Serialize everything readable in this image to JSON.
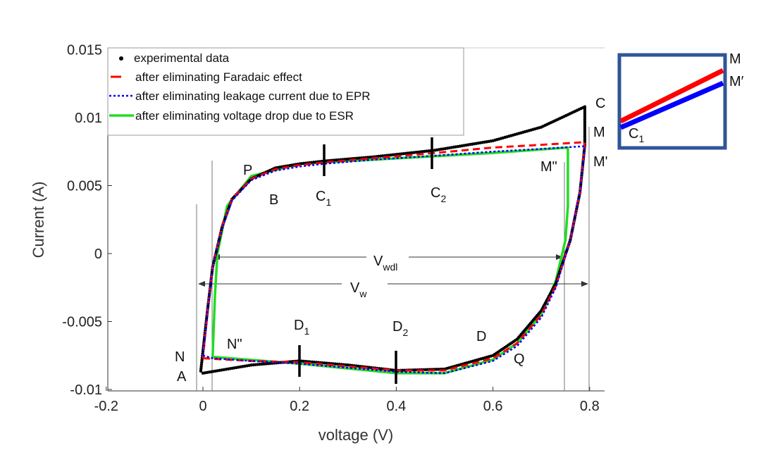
{
  "chart_data": {
    "type": "line",
    "xlabel": "voltage (V)",
    "ylabel": "Current (A)",
    "xlim": [
      -0.2,
      0.85
    ],
    "ylim": [
      -0.01,
      0.015
    ],
    "xticks": [
      "-0.2",
      "0",
      "0.2",
      "0.4",
      "0.6",
      "0.8"
    ],
    "xtick_values": [
      -0.2,
      0,
      0.2,
      0.4,
      0.6,
      0.8
    ],
    "yticks": [
      "0.015",
      "0.01",
      "0.005",
      "0",
      "-0.005",
      "-0.01"
    ],
    "ytick_values": [
      0.015,
      0.01,
      0.005,
      0,
      -0.005,
      -0.01
    ],
    "legend_position": "top-left",
    "series": [
      {
        "name": "experimental data",
        "color": "#000000",
        "style": "dots",
        "x": [
          0.0,
          0.1,
          0.2,
          0.3,
          0.4,
          0.5,
          0.6,
          0.65,
          0.7,
          0.73,
          0.76,
          0.78,
          0.79,
          0.79,
          0.7,
          0.6,
          0.48,
          0.35,
          0.25,
          0.2,
          0.15,
          0.1,
          0.06,
          0.04,
          0.02,
          0.01,
          0.0,
          -0.005
        ],
        "y": [
          -0.0088,
          -0.0082,
          -0.0079,
          -0.0082,
          -0.0086,
          -0.0085,
          -0.0075,
          -0.0063,
          -0.0042,
          -0.0022,
          0.001,
          0.0045,
          0.008,
          0.0108,
          0.0093,
          0.0083,
          0.0076,
          0.0071,
          0.0068,
          0.0066,
          0.0063,
          0.0055,
          0.004,
          0.002,
          -0.001,
          -0.004,
          -0.0072,
          -0.0088
        ]
      },
      {
        "name": "after eliminating Faradaic effect",
        "color": "#ff0000",
        "style": "dashed",
        "x": [
          0.0,
          0.1,
          0.2,
          0.3,
          0.4,
          0.5,
          0.6,
          0.65,
          0.7,
          0.73,
          0.76,
          0.78,
          0.79,
          0.7,
          0.6,
          0.48,
          0.35,
          0.25,
          0.2,
          0.15,
          0.1,
          0.06,
          0.04,
          0.02,
          0.01,
          0.0
        ],
        "y": [
          -0.0077,
          -0.0079,
          -0.008,
          -0.0083,
          -0.0086,
          -0.0086,
          -0.0077,
          -0.0066,
          -0.0045,
          -0.0024,
          0.001,
          0.0045,
          0.0082,
          0.008,
          0.0078,
          0.0074,
          0.007,
          0.0067,
          0.0065,
          0.0062,
          0.0055,
          0.004,
          0.002,
          -0.001,
          -0.004,
          -0.0077
        ]
      },
      {
        "name": "after eliminating leakage current due to EPR",
        "color": "#0000ff",
        "style": "dotted",
        "x": [
          0.0,
          0.02,
          0.1,
          0.2,
          0.3,
          0.4,
          0.5,
          0.6,
          0.65,
          0.7,
          0.73,
          0.76,
          0.78,
          0.79,
          0.7,
          0.6,
          0.48,
          0.35,
          0.25,
          0.2,
          0.15,
          0.1,
          0.06,
          0.04,
          0.02,
          0.01,
          0.0
        ],
        "y": [
          -0.0075,
          -0.0077,
          -0.0079,
          -0.0081,
          -0.0084,
          -0.0087,
          -0.0088,
          -0.0079,
          -0.0068,
          -0.0047,
          -0.0025,
          0.001,
          0.0045,
          0.0079,
          0.0077,
          0.0075,
          0.0072,
          0.0069,
          0.0066,
          0.0064,
          0.0061,
          0.0054,
          0.0039,
          0.0019,
          -0.001,
          -0.004,
          -0.0075
        ]
      },
      {
        "name": "after eliminating voltage drop due to ESR",
        "color": "#22dd22",
        "style": "solid",
        "x": [
          0.02,
          0.025,
          0.03,
          0.05,
          0.1,
          0.2,
          0.4,
          0.6,
          0.755,
          0.755,
          0.75,
          0.73,
          0.7,
          0.65,
          0.6,
          0.5,
          0.4,
          0.2,
          0.02
        ],
        "y": [
          -0.0076,
          -0.003,
          0.0,
          0.0035,
          0.0057,
          0.0066,
          0.007,
          0.0074,
          0.0078,
          0.0035,
          0.001,
          -0.002,
          -0.0045,
          -0.0066,
          -0.0078,
          -0.0088,
          -0.0088,
          -0.0081,
          -0.0076
        ]
      }
    ],
    "annotations": {
      "C": "C",
      "M": "M",
      "M_prime": "M'",
      "M_dprime": "M\"",
      "P": "P",
      "B": "B",
      "C1": "C",
      "C1_sub": "1",
      "C2": "C",
      "C2_sub": "2",
      "D1": "D",
      "D1_sub": "1",
      "D2": "D",
      "D2_sub": "2",
      "D": "D",
      "Q": "Q",
      "N": "N",
      "N_dprime": "N\"",
      "A": "A",
      "Vwdl": "V",
      "Vwdl_sub": "wdl",
      "Vw": "V",
      "Vw_sub": "w"
    },
    "inset": {
      "label_M": "M",
      "label_M_prime": "M′",
      "label_C": "C",
      "label_C_sub": "1",
      "frame_color": "#2f5597"
    }
  }
}
